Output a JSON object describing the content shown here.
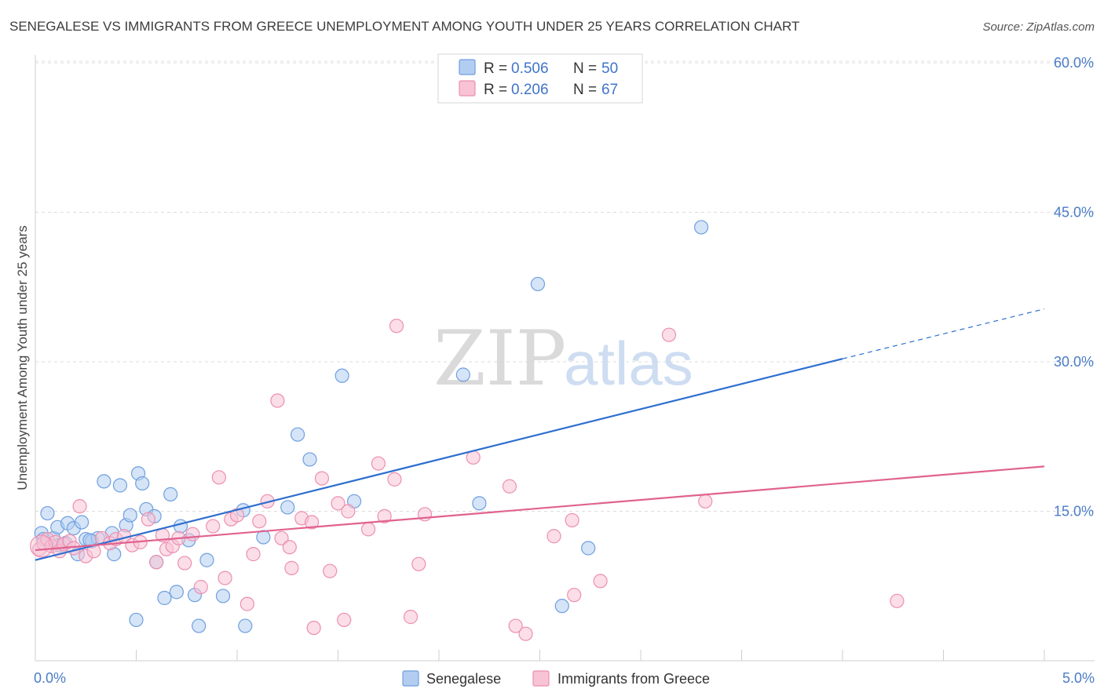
{
  "chart_data": {
    "type": "scatter",
    "title": "SENEGALESE VS IMMIGRANTS FROM GREECE UNEMPLOYMENT AMONG YOUTH UNDER 25 YEARS CORRELATION CHART",
    "source": "Source: ZipAtlas.com",
    "xlabel": "",
    "ylabel": "Unemployment Among Youth under 25 years",
    "xlim": [
      0,
      5
    ],
    "ylim": [
      0,
      60
    ],
    "x_tick_labels": [
      "0.0%",
      "5.0%"
    ],
    "y_ticks": [
      15,
      30,
      45,
      60
    ],
    "y_tick_labels": [
      "15.0%",
      "30.0%",
      "45.0%",
      "60.0%"
    ],
    "watermark": {
      "part1": "ZIP",
      "part2": "atlas"
    },
    "legend": {
      "r_label": "R =",
      "n_label": "N =",
      "entries": [
        {
          "name": "Senegalese",
          "r": "0.506",
          "n": "50"
        },
        {
          "name": "Immigrants from Greece",
          "r": "0.206",
          "n": "67"
        }
      ]
    },
    "series": [
      {
        "name": "Senegalese",
        "color": "#6f9fe0",
        "fill": "#b3cdf1",
        "line_color": "#2d6fd0",
        "trend": {
          "x0": 0.0,
          "y0": 10.1,
          "x1": 4.0,
          "y1": 30.3,
          "x_dash_end": 5.0,
          "y_dash_end": 35.3
        },
        "points": [
          [
            0.03,
            12.8
          ],
          [
            0.06,
            14.8
          ],
          [
            0.09,
            12.3
          ],
          [
            0.11,
            13.4
          ],
          [
            0.12,
            11.6
          ],
          [
            0.16,
            13.8
          ],
          [
            0.19,
            13.3
          ],
          [
            0.21,
            10.7
          ],
          [
            0.23,
            13.9
          ],
          [
            0.25,
            12.2
          ],
          [
            0.28,
            12.0
          ],
          [
            0.31,
            12.3
          ],
          [
            0.34,
            18.0
          ],
          [
            0.38,
            12.8
          ],
          [
            0.39,
            10.7
          ],
          [
            0.42,
            17.6
          ],
          [
            0.45,
            13.6
          ],
          [
            0.47,
            14.6
          ],
          [
            0.51,
            18.8
          ],
          [
            0.53,
            17.8
          ],
          [
            0.55,
            15.2
          ],
          [
            0.59,
            14.5
          ],
          [
            0.6,
            9.9
          ],
          [
            0.64,
            6.3
          ],
          [
            0.67,
            16.7
          ],
          [
            0.7,
            6.9
          ],
          [
            0.72,
            13.5
          ],
          [
            0.76,
            12.1
          ],
          [
            0.79,
            6.6
          ],
          [
            0.81,
            3.5
          ],
          [
            0.85,
            10.1
          ],
          [
            0.93,
            6.5
          ],
          [
            1.03,
            15.1
          ],
          [
            1.04,
            3.5
          ],
          [
            1.13,
            12.4
          ],
          [
            1.25,
            15.4
          ],
          [
            1.3,
            22.7
          ],
          [
            1.36,
            20.2
          ],
          [
            1.52,
            28.6
          ],
          [
            1.58,
            16.0
          ],
          [
            2.12,
            28.7
          ],
          [
            2.2,
            15.8
          ],
          [
            2.49,
            37.8
          ],
          [
            2.61,
            5.5
          ],
          [
            2.74,
            11.3
          ],
          [
            3.3,
            43.5
          ],
          [
            0.04,
            12.2
          ],
          [
            0.15,
            11.8
          ],
          [
            0.27,
            12.1
          ],
          [
            0.5,
            4.1
          ]
        ]
      },
      {
        "name": "Immigrants from Greece",
        "color": "#ec8fb0",
        "fill": "#f7c3d5",
        "line_color": "#e0628f",
        "trend": {
          "x0": 0.0,
          "y0": 11.1,
          "x1": 5.0,
          "y1": 19.5
        },
        "points": [
          [
            0.02,
            11.2
          ],
          [
            0.04,
            11.8
          ],
          [
            0.06,
            12.2
          ],
          [
            0.08,
            11.5
          ],
          [
            0.1,
            11.9
          ],
          [
            0.12,
            11.0
          ],
          [
            0.14,
            11.7
          ],
          [
            0.17,
            12.0
          ],
          [
            0.19,
            11.3
          ],
          [
            0.22,
            15.5
          ],
          [
            0.25,
            10.5
          ],
          [
            0.29,
            11.0
          ],
          [
            0.33,
            12.3
          ],
          [
            0.37,
            11.8
          ],
          [
            0.4,
            12.2
          ],
          [
            0.44,
            12.5
          ],
          [
            0.48,
            11.6
          ],
          [
            0.52,
            11.9
          ],
          [
            0.56,
            14.2
          ],
          [
            0.6,
            9.9
          ],
          [
            0.63,
            12.6
          ],
          [
            0.65,
            11.2
          ],
          [
            0.68,
            11.5
          ],
          [
            0.71,
            12.3
          ],
          [
            0.74,
            9.8
          ],
          [
            0.78,
            12.7
          ],
          [
            0.82,
            7.4
          ],
          [
            0.88,
            13.5
          ],
          [
            0.91,
            18.4
          ],
          [
            0.94,
            8.3
          ],
          [
            0.97,
            14.2
          ],
          [
            1.0,
            14.6
          ],
          [
            1.05,
            5.7
          ],
          [
            1.08,
            10.7
          ],
          [
            1.11,
            14.0
          ],
          [
            1.15,
            16.0
          ],
          [
            1.2,
            26.1
          ],
          [
            1.22,
            12.3
          ],
          [
            1.26,
            11.4
          ],
          [
            1.27,
            9.3
          ],
          [
            1.32,
            14.3
          ],
          [
            1.37,
            13.9
          ],
          [
            1.38,
            3.3
          ],
          [
            1.42,
            18.3
          ],
          [
            1.46,
            9.0
          ],
          [
            1.5,
            15.8
          ],
          [
            1.53,
            4.1
          ],
          [
            1.55,
            15.0
          ],
          [
            1.65,
            13.2
          ],
          [
            1.7,
            19.8
          ],
          [
            1.73,
            14.5
          ],
          [
            1.78,
            18.2
          ],
          [
            1.79,
            33.6
          ],
          [
            1.86,
            4.4
          ],
          [
            1.9,
            9.7
          ],
          [
            1.93,
            14.7
          ],
          [
            2.17,
            20.4
          ],
          [
            2.35,
            17.5
          ],
          [
            2.38,
            3.5
          ],
          [
            2.43,
            2.7
          ],
          [
            2.57,
            12.5
          ],
          [
            2.66,
            14.1
          ],
          [
            2.67,
            6.6
          ],
          [
            2.8,
            8.0
          ],
          [
            3.14,
            32.7
          ],
          [
            3.32,
            16.0
          ],
          [
            4.27,
            6.0
          ]
        ]
      }
    ]
  }
}
